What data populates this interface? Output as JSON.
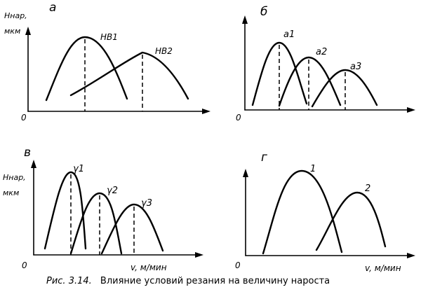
{
  "caption": {
    "label": "Рис. 3.14.",
    "text": "Влияние условий резания на величину нароста"
  },
  "panels": [
    {
      "id": "a",
      "letter": "а",
      "y_label_line1": "Hнар,",
      "y_label_line2": "мкм",
      "origin_label": "0",
      "x_label": "",
      "curves": [
        "HB1",
        "HB2"
      ]
    },
    {
      "id": "b",
      "letter": "б",
      "y_label_line1": "",
      "y_label_line2": "",
      "origin_label": "0",
      "x_label": "",
      "curves": [
        "a1",
        "a2",
        "a3"
      ]
    },
    {
      "id": "v",
      "letter": "в",
      "y_label_line1": "Hнар,",
      "y_label_line2": "мкм",
      "origin_label": "0",
      "x_label": "v, м/мин",
      "curves": [
        "γ1",
        "γ2",
        "γ3"
      ]
    },
    {
      "id": "g",
      "letter": "г",
      "y_label_line1": "",
      "y_label_line2": "",
      "origin_label": "0",
      "x_label": "v, м/мин",
      "curves": [
        "1",
        "2"
      ]
    }
  ]
}
